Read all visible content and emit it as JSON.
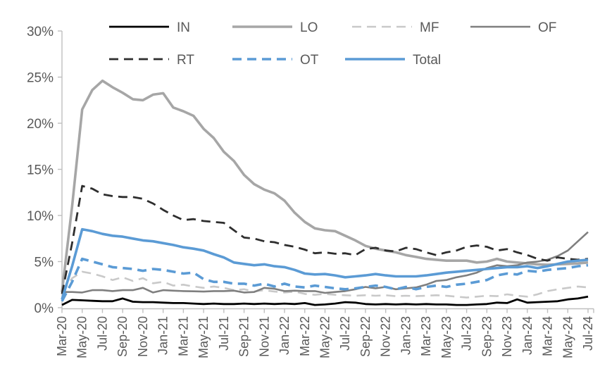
{
  "chart_data": {
    "type": "line",
    "title": "",
    "grid": false,
    "axis_color": "#BFBFBF",
    "label_color": "#595959",
    "x_axis": {
      "categories": [
        "Mar-20",
        "Apr-20",
        "May-20",
        "Jun-20",
        "Jul-20",
        "Aug-20",
        "Sep-20",
        "Oct-20",
        "Nov-20",
        "Dec-20",
        "Jan-21",
        "Feb-21",
        "Mar-21",
        "Apr-21",
        "May-21",
        "Jun-21",
        "Jul-21",
        "Aug-21",
        "Sep-21",
        "Oct-21",
        "Nov-21",
        "Dec-21",
        "Jan-22",
        "Feb-22",
        "Mar-22",
        "Apr-22",
        "May-22",
        "Jun-22",
        "Jul-22",
        "Aug-22",
        "Sep-22",
        "Oct-22",
        "Nov-22",
        "Dec-22",
        "Jan-23",
        "Feb-23",
        "Mar-23",
        "Apr-23",
        "May-23",
        "Jun-23",
        "Jul-23",
        "Aug-23",
        "Sep-23",
        "Oct-23",
        "Nov-23",
        "Dec-23",
        "Jan-24",
        "Feb-24",
        "Mar-24",
        "Apr-24",
        "May-24",
        "Jun-24",
        "Jul-24"
      ],
      "tick_label_every": 2
    },
    "y_axis": {
      "min": 0,
      "max": 30,
      "tick_step": 5,
      "tick_labels": [
        "0%",
        "5%",
        "10%",
        "15%",
        "20%",
        "25%",
        "30%"
      ]
    },
    "legend": {
      "position": "top",
      "rows": [
        [
          "IN",
          "LO",
          "MF",
          "OF"
        ],
        [
          "RT",
          "OT",
          "Total"
        ]
      ]
    },
    "series": [
      {
        "name": "IN",
        "color": "#000000",
        "style": "solid",
        "width": 2.8,
        "values": [
          0.3,
          0.85,
          0.8,
          0.75,
          0.7,
          0.7,
          1.0,
          0.65,
          0.6,
          0.6,
          0.55,
          0.5,
          0.5,
          0.45,
          0.4,
          0.45,
          0.4,
          0.4,
          0.45,
          0.4,
          0.45,
          0.4,
          0.45,
          0.4,
          0.5,
          0.3,
          0.35,
          0.45,
          0.6,
          0.55,
          0.4,
          0.35,
          0.4,
          0.35,
          0.4,
          0.35,
          0.4,
          0.35,
          0.35,
          0.3,
          0.3,
          0.35,
          0.4,
          0.55,
          0.5,
          0.9,
          0.55,
          0.6,
          0.65,
          0.7,
          0.9,
          1.0,
          1.2
        ]
      },
      {
        "name": "LO",
        "color": "#A6A6A6",
        "style": "solid",
        "width": 3.6,
        "values": [
          1.7,
          11.0,
          21.5,
          23.6,
          24.6,
          23.9,
          23.3,
          22.6,
          22.5,
          23.1,
          23.25,
          21.7,
          21.3,
          20.8,
          19.4,
          18.4,
          16.9,
          15.9,
          14.4,
          13.4,
          12.8,
          12.4,
          11.6,
          10.3,
          9.3,
          8.6,
          8.4,
          8.3,
          7.8,
          7.3,
          6.7,
          6.4,
          6.2,
          6.0,
          5.7,
          5.5,
          5.3,
          5.2,
          5.1,
          5.1,
          5.1,
          4.9,
          5.0,
          5.3,
          5.0,
          4.9,
          4.8,
          4.7,
          4.65,
          4.7,
          4.75,
          4.8,
          4.9
        ]
      },
      {
        "name": "MF",
        "color": "#C9C9C9",
        "style": "dashed",
        "width": 2.6,
        "values": [
          1.6,
          3.2,
          3.9,
          3.7,
          3.4,
          3.0,
          3.3,
          2.9,
          3.2,
          2.65,
          2.8,
          2.4,
          2.5,
          2.3,
          2.15,
          2.3,
          2.15,
          1.9,
          2.0,
          1.75,
          1.9,
          1.75,
          1.65,
          1.75,
          1.5,
          1.4,
          1.5,
          1.4,
          1.35,
          1.3,
          1.35,
          1.3,
          1.35,
          1.25,
          1.3,
          1.25,
          1.3,
          1.35,
          1.3,
          1.2,
          1.1,
          1.2,
          1.3,
          1.25,
          1.45,
          1.3,
          1.2,
          1.45,
          1.8,
          2.0,
          2.15,
          2.3,
          2.2
        ]
      },
      {
        "name": "OF",
        "color": "#7F7F7F",
        "style": "solid",
        "width": 2.6,
        "values": [
          1.7,
          1.7,
          1.65,
          1.9,
          1.9,
          1.8,
          1.9,
          1.9,
          2.15,
          1.65,
          1.9,
          1.85,
          1.8,
          1.78,
          1.75,
          1.8,
          1.8,
          1.85,
          1.65,
          1.7,
          2.15,
          2.05,
          1.8,
          1.85,
          1.8,
          1.8,
          1.6,
          1.7,
          1.8,
          2.0,
          2.25,
          2.1,
          2.25,
          2.0,
          2.1,
          2.2,
          2.5,
          2.9,
          3.0,
          3.3,
          3.5,
          3.8,
          4.3,
          4.6,
          4.5,
          4.6,
          4.9,
          5.0,
          5.2,
          5.6,
          6.2,
          7.2,
          8.2
        ]
      },
      {
        "name": "RT",
        "color": "#2E2E2E",
        "style": "dashed",
        "width": 2.8,
        "values": [
          1.5,
          7.0,
          13.2,
          12.9,
          12.3,
          12.1,
          12.0,
          12.0,
          11.8,
          11.3,
          10.6,
          10.0,
          9.5,
          9.6,
          9.4,
          9.3,
          9.2,
          8.4,
          7.6,
          7.5,
          7.2,
          7.1,
          6.8,
          6.6,
          6.3,
          5.9,
          6.0,
          5.85,
          5.9,
          5.7,
          6.35,
          6.5,
          6.2,
          6.1,
          6.5,
          6.35,
          6.0,
          5.7,
          6.0,
          6.2,
          6.6,
          6.75,
          6.6,
          6.2,
          6.35,
          6.0,
          5.7,
          5.3,
          5.1,
          5.45,
          5.3,
          5.2,
          5.3
        ]
      },
      {
        "name": "OT",
        "color": "#5B9BD5",
        "style": "dashed",
        "width": 3.6,
        "values": [
          0.7,
          2.8,
          5.3,
          5.0,
          4.7,
          4.4,
          4.3,
          4.2,
          4.0,
          4.2,
          4.1,
          3.9,
          3.7,
          3.8,
          3.1,
          2.8,
          2.8,
          2.6,
          2.6,
          2.4,
          2.6,
          2.3,
          2.6,
          2.3,
          2.2,
          2.4,
          2.25,
          2.1,
          2.0,
          2.1,
          2.25,
          2.4,
          2.25,
          2.0,
          2.25,
          2.0,
          2.25,
          2.4,
          2.25,
          2.5,
          2.6,
          2.8,
          3.0,
          3.5,
          3.7,
          3.6,
          4.0,
          3.9,
          4.1,
          4.2,
          4.3,
          4.5,
          4.6
        ]
      },
      {
        "name": "Total",
        "color": "#5B9BD5",
        "style": "solid",
        "width": 3.6,
        "values": [
          0.9,
          4.5,
          8.5,
          8.3,
          8.0,
          7.8,
          7.7,
          7.5,
          7.3,
          7.2,
          7.0,
          6.8,
          6.55,
          6.4,
          6.2,
          5.8,
          5.45,
          4.9,
          4.75,
          4.6,
          4.7,
          4.5,
          4.4,
          4.1,
          3.7,
          3.6,
          3.65,
          3.5,
          3.3,
          3.4,
          3.5,
          3.65,
          3.5,
          3.4,
          3.4,
          3.4,
          3.5,
          3.65,
          3.8,
          3.9,
          4.0,
          4.1,
          4.2,
          4.3,
          4.4,
          4.4,
          4.5,
          4.3,
          4.5,
          4.75,
          5.0,
          5.1,
          5.2
        ]
      }
    ]
  }
}
